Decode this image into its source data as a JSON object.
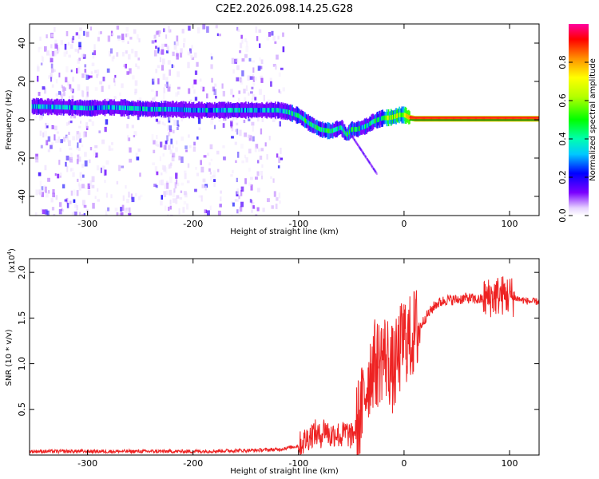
{
  "title": "C2E2.2026.098.14.25.G28",
  "chart_data": [
    {
      "type": "heatmap",
      "name": "spectrogram",
      "xlabel": "Height of straight line (km)",
      "ylabel": "Frequency (Hz)",
      "xlim": [
        -355,
        128
      ],
      "ylim": [
        -50,
        50
      ],
      "xticks": [
        -300,
        -200,
        -100,
        0,
        100
      ],
      "yticks": [
        -40,
        -20,
        0,
        20,
        40
      ],
      "ridge": {
        "x": [
          -355,
          -320,
          -300,
          -280,
          -260,
          -240,
          -220,
          -200,
          -180,
          -160,
          -140,
          -120,
          -110,
          -100,
          -90,
          -80,
          -70,
          -60,
          -55,
          -50,
          -45,
          -40,
          -35,
          -30,
          -25,
          -20,
          -15,
          -10,
          -5,
          0,
          5,
          10,
          20,
          40,
          60,
          80,
          100,
          128
        ],
        "y": [
          7,
          6.5,
          6,
          6.5,
          6,
          5.5,
          5.5,
          5,
          5,
          5,
          5,
          5,
          4,
          2,
          -2,
          -5,
          -6,
          -4,
          -8,
          -5,
          -5,
          -4,
          -3,
          -1,
          0,
          1,
          1,
          1.5,
          2.5,
          2.5,
          1,
          0.5,
          0.5,
          0.5,
          0.5,
          0.5,
          0.5,
          0.5
        ]
      },
      "colorbar": {
        "label": "Normalized spectral amplitude",
        "ticks": [
          "0.0",
          "0.2",
          "0.4",
          "0.6",
          "0.8"
        ],
        "tick_values": [
          0.0,
          0.2,
          0.4,
          0.6,
          0.8
        ],
        "range": [
          0,
          1
        ]
      }
    },
    {
      "type": "line",
      "name": "snr",
      "xlabel": "Height of straight line (km)",
      "ylabel": "SNR (10 * v/v)",
      "scale_label": "(x10",
      "scale_exponent": "4",
      "xlim": [
        -355,
        128
      ],
      "ylim": [
        0,
        2.15
      ],
      "xticks": [
        -300,
        -200,
        -100,
        0,
        100
      ],
      "yticks": [
        0.5,
        1.0,
        1.5,
        2.0
      ],
      "ytick_labels": [
        "0.5",
        "1.0",
        "1.5",
        "2.0"
      ],
      "color": "#ee2222",
      "x": [
        -355,
        -300,
        -250,
        -200,
        -150,
        -120,
        -100,
        -90,
        -85,
        -80,
        -75,
        -70,
        -65,
        -60,
        -55,
        -50,
        -45,
        -40,
        -35,
        -30,
        -25,
        -20,
        -15,
        -10,
        -5,
        0,
        5,
        10,
        15,
        20,
        30,
        40,
        50,
        60,
        70,
        80,
        90,
        100,
        110,
        120,
        128
      ],
      "y": [
        0.04,
        0.04,
        0.04,
        0.04,
        0.05,
        0.06,
        0.1,
        0.2,
        0.25,
        0.2,
        0.3,
        0.2,
        0.25,
        0.2,
        0.25,
        0.2,
        0.3,
        0.5,
        0.8,
        1.0,
        1.0,
        1.1,
        1.05,
        0.9,
        1.1,
        1.3,
        1.25,
        1.35,
        1.4,
        1.5,
        1.65,
        1.7,
        1.7,
        1.72,
        1.7,
        1.72,
        1.75,
        1.75,
        1.7,
        1.68,
        1.68
      ]
    }
  ]
}
